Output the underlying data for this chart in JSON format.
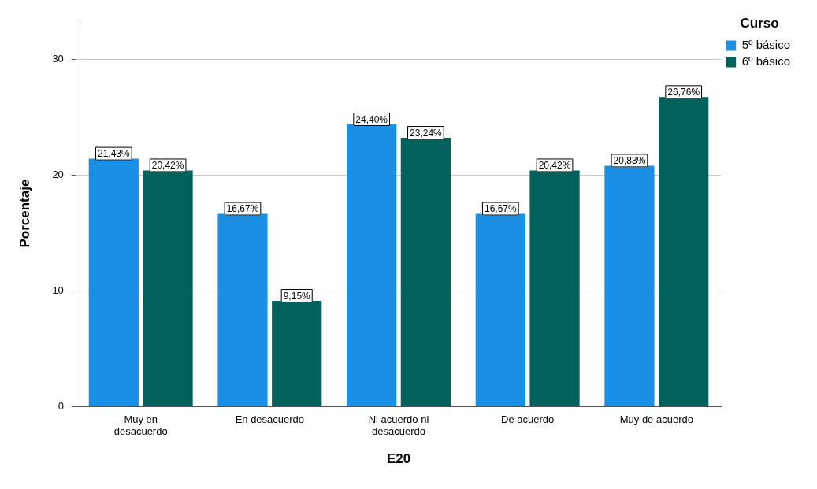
{
  "chart_data": {
    "type": "bar",
    "xlabel": "E20",
    "ylabel": "Porcentaje",
    "legend_title": "Curso",
    "categories": [
      "Muy en desacuerdo",
      "En desacuerdo",
      "Ni acuerdo ni desacuerdo",
      "De acuerdo",
      "Muy de acuerdo"
    ],
    "series": [
      {
        "name": "5º básico",
        "color": "#1990e6",
        "values": [
          21.43,
          16.67,
          24.4,
          16.67,
          20.83
        ],
        "value_labels": [
          "21,43%",
          "16,67%",
          "24,40%",
          "16,67%",
          "20,83%"
        ]
      },
      {
        "name": "6º básico",
        "color": "#02615d",
        "values": [
          20.42,
          9.15,
          23.24,
          20.42,
          26.76
        ],
        "value_labels": [
          "20,42%",
          "9,15%",
          "23,24%",
          "20,42%",
          "26,76%"
        ]
      }
    ],
    "ylim": [
      0,
      33.4
    ],
    "yticks": [
      0,
      10,
      20,
      30
    ],
    "grid": "y",
    "legend": "top right"
  }
}
